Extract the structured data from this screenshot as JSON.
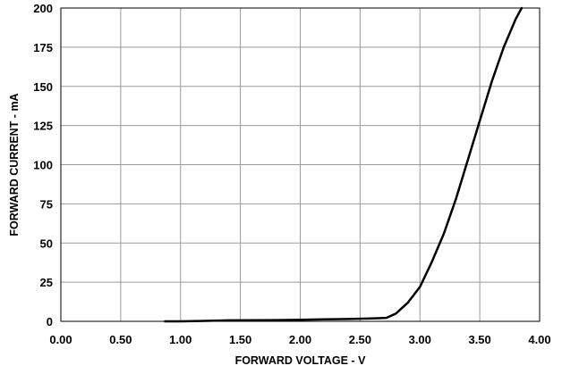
{
  "chart_data": {
    "type": "line",
    "title": "",
    "xlabel": "FORWARD VOLTAGE - V",
    "ylabel": "FORWARD CURRENT - mA",
    "xlim": [
      0,
      4
    ],
    "ylim": [
      0,
      200
    ],
    "x_ticks": [
      0,
      0.5,
      1.0,
      1.5,
      2.0,
      2.5,
      3.0,
      3.5,
      4.0
    ],
    "x_tick_labels": [
      "0.00",
      "0.50",
      "1.00",
      "1.50",
      "2.00",
      "2.50",
      "3.00",
      "3.50",
      "4.00"
    ],
    "y_ticks": [
      0,
      25,
      50,
      75,
      100,
      125,
      150,
      175,
      200
    ],
    "y_tick_labels": [
      "0",
      "25",
      "50",
      "75",
      "100",
      "125",
      "150",
      "175",
      "200"
    ],
    "grid": true,
    "legend": "none",
    "line_color": "#000000",
    "grid_color": "#9a9a9a",
    "series": [
      {
        "x": [
          0.87,
          1.0,
          1.2,
          1.4,
          1.6,
          1.8,
          2.0,
          2.2,
          2.4,
          2.6,
          2.72,
          2.8,
          2.9,
          3.0,
          3.1,
          3.2,
          3.3,
          3.4,
          3.5,
          3.6,
          3.7,
          3.8,
          3.85
        ],
        "y": [
          0,
          0,
          0.3,
          0.6,
          0.7,
          0.8,
          1.0,
          1.3,
          1.5,
          1.8,
          2.2,
          5,
          12,
          22,
          38,
          56,
          78,
          103,
          128,
          153,
          175,
          193,
          200
        ]
      }
    ]
  }
}
